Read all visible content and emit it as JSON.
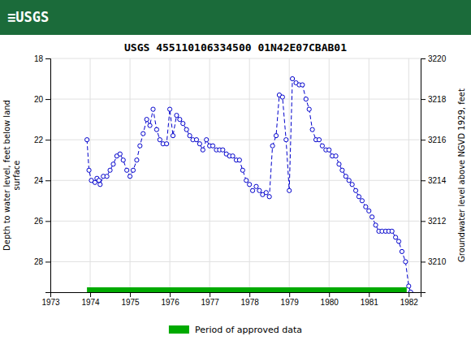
{
  "chart_data": {
    "type": "line",
    "title": "USGS 455110106334500 01N42E07CBAB01",
    "annotations": [
      {
        "text": "≡USGS",
        "color": "#1b6b3a"
      }
    ],
    "ylabel": "Depth to water level, feet below land\nsurface",
    "y2label": "Groundwater level above NGVD 1929, feet",
    "xlim": [
      1973.0,
      1982.3
    ],
    "xticks": [
      1973,
      1974,
      1975,
      1976,
      1977,
      1978,
      1979,
      1980,
      1981,
      1982
    ],
    "ylim": [
      29.5,
      18
    ],
    "yticks": [
      18,
      20,
      22,
      24,
      26,
      28
    ],
    "y2lim": [
      3208.5,
      3220
    ],
    "y2ticks": [
      3210,
      3212,
      3214,
      3216,
      3218,
      3220
    ],
    "grid": true,
    "legend": "bottom",
    "x": [
      1973.92,
      1973.97,
      1974.03,
      1974.12,
      1974.17,
      1974.22,
      1974.25,
      1974.33,
      1974.42,
      1974.5,
      1974.58,
      1974.67,
      1974.75,
      1974.83,
      1974.92,
      1975.0,
      1975.08,
      1975.17,
      1975.25,
      1975.33,
      1975.42,
      1975.5,
      1975.58,
      1975.67,
      1975.75,
      1975.83,
      1975.92,
      1976.0,
      1976.08,
      1976.17,
      1976.25,
      1976.33,
      1976.42,
      1976.5,
      1976.58,
      1976.67,
      1976.75,
      1976.83,
      1976.92,
      1977.0,
      1977.08,
      1977.17,
      1977.25,
      1977.33,
      1977.42,
      1977.5,
      1977.58,
      1977.67,
      1977.75,
      1977.83,
      1977.92,
      1978.0,
      1978.08,
      1978.17,
      1978.25,
      1978.33,
      1978.42,
      1978.5,
      1978.58,
      1978.67,
      1978.75,
      1978.83,
      1978.92,
      1979.0,
      1979.08,
      1979.17,
      1979.25,
      1979.33,
      1979.42,
      1979.5,
      1979.58,
      1979.67,
      1979.75,
      1979.83,
      1979.92,
      1980.0,
      1980.08,
      1980.17,
      1980.25,
      1980.33,
      1980.42,
      1980.5,
      1980.58,
      1980.67,
      1980.75,
      1980.83,
      1980.92,
      1981.0,
      1981.08,
      1981.17,
      1981.25,
      1981.33,
      1981.42,
      1981.5,
      1981.58,
      1981.67,
      1981.75,
      1981.83,
      1981.92,
      1982.0,
      1982.05
    ],
    "series": [
      {
        "color": "#0000cc",
        "marker": "circle",
        "line_style": "dashed",
        "values": [
          22.0,
          23.5,
          24.0,
          24.1,
          23.9,
          24.0,
          24.2,
          23.8,
          23.8,
          23.5,
          23.2,
          22.8,
          22.7,
          23.0,
          23.5,
          23.8,
          23.5,
          23.0,
          22.3,
          21.7,
          21.0,
          21.3,
          20.5,
          21.5,
          22.0,
          22.2,
          22.2,
          20.5,
          21.8,
          20.8,
          21.0,
          21.2,
          21.5,
          21.8,
          22.0,
          22.0,
          22.2,
          22.5,
          22.0,
          22.3,
          22.3,
          22.5,
          22.5,
          22.5,
          22.7,
          22.8,
          22.8,
          23.0,
          23.0,
          23.5,
          24.0,
          24.2,
          24.5,
          24.3,
          24.5,
          24.7,
          24.6,
          24.8,
          22.3,
          21.8,
          19.8,
          19.9,
          22.0,
          24.5,
          19.0,
          19.2,
          19.3,
          19.3,
          20.0,
          20.5,
          21.5,
          22.0,
          22.0,
          22.3,
          22.5,
          22.5,
          22.8,
          22.8,
          23.2,
          23.5,
          23.8,
          24.0,
          24.2,
          24.5,
          24.8,
          25.0,
          25.3,
          25.5,
          25.8,
          26.2,
          26.5,
          26.5,
          26.5,
          26.5,
          26.5,
          26.8,
          27.0,
          27.5,
          28.0,
          29.2,
          29.5
        ]
      }
    ],
    "approved_period": {
      "name": "Period of approved data",
      "color": "#00aa00",
      "x": [
        1973.92,
        1981.95
      ]
    }
  }
}
